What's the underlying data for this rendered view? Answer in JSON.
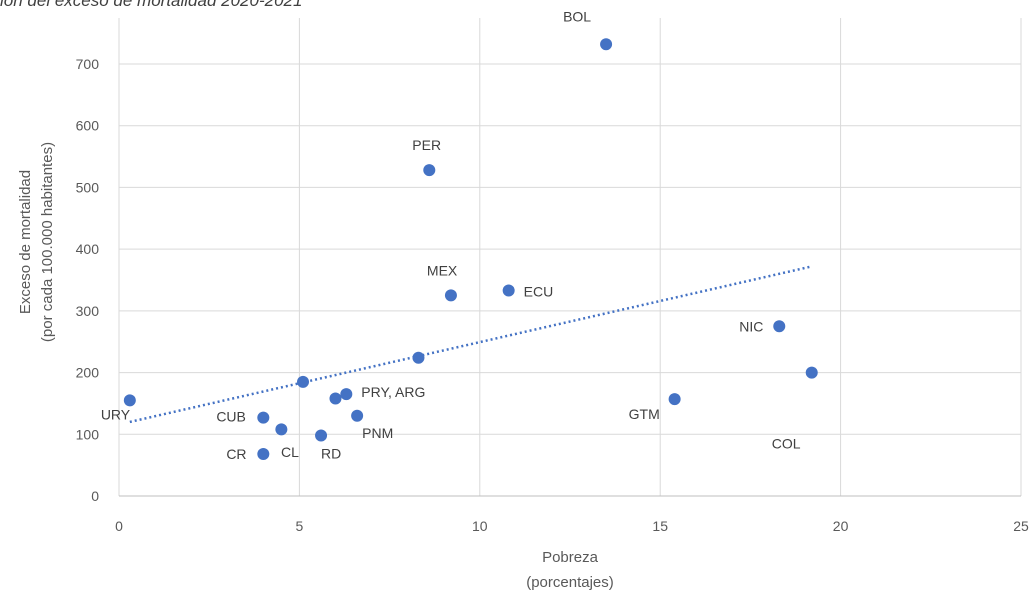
{
  "chart_data": {
    "type": "scatter",
    "title": "ión del exceso de mortalidad 2020-2021",
    "xlabel": [
      "Pobreza",
      "(porcentajes)"
    ],
    "ylabel": [
      "Exceso de mortalidad",
      "(por cada 100.000 habitantes)"
    ],
    "xlim": [
      0,
      25
    ],
    "ylim": [
      0,
      770
    ],
    "x_ticks": [
      0,
      5,
      10,
      15,
      20,
      25
    ],
    "y_ticks": [
      0,
      100,
      200,
      300,
      400,
      500,
      600,
      700
    ],
    "grid": "vertical and horizontal",
    "legend": "none",
    "marker_color": "#4472C4",
    "trendline": {
      "type": "linear",
      "style": "dotted",
      "from": [
        0.3,
        120
      ],
      "to": [
        19.2,
        372
      ]
    },
    "points": [
      {
        "x": 0.3,
        "y": 155,
        "label": "URY"
      },
      {
        "x": 4.0,
        "y": 127,
        "label": "CUB"
      },
      {
        "x": 4.5,
        "y": 108,
        "label": ""
      },
      {
        "x": 4.0,
        "y": 68,
        "label": "CR"
      },
      {
        "x": null,
        "y": null,
        "label": "CL"
      },
      {
        "x": 5.1,
        "y": 185,
        "label": ""
      },
      {
        "x": 5.6,
        "y": 98,
        "label": "RD"
      },
      {
        "x": 6.0,
        "y": 158,
        "label": ""
      },
      {
        "x": 6.3,
        "y": 165,
        "label": "PRY, ARG"
      },
      {
        "x": 6.6,
        "y": 130,
        "label": "PNM"
      },
      {
        "x": 8.3,
        "y": 224,
        "label": ""
      },
      {
        "x": 8.6,
        "y": 528,
        "label": "PER"
      },
      {
        "x": 9.2,
        "y": 325,
        "label": "MEX"
      },
      {
        "x": 10.8,
        "y": 333,
        "label": "ECU"
      },
      {
        "x": 13.5,
        "y": 732,
        "label": "BOL"
      },
      {
        "x": 15.4,
        "y": 157,
        "label": "GTM"
      },
      {
        "x": 18.3,
        "y": 275,
        "label": "NIC"
      },
      {
        "x": 19.2,
        "y": 200,
        "label": "COL"
      }
    ]
  }
}
